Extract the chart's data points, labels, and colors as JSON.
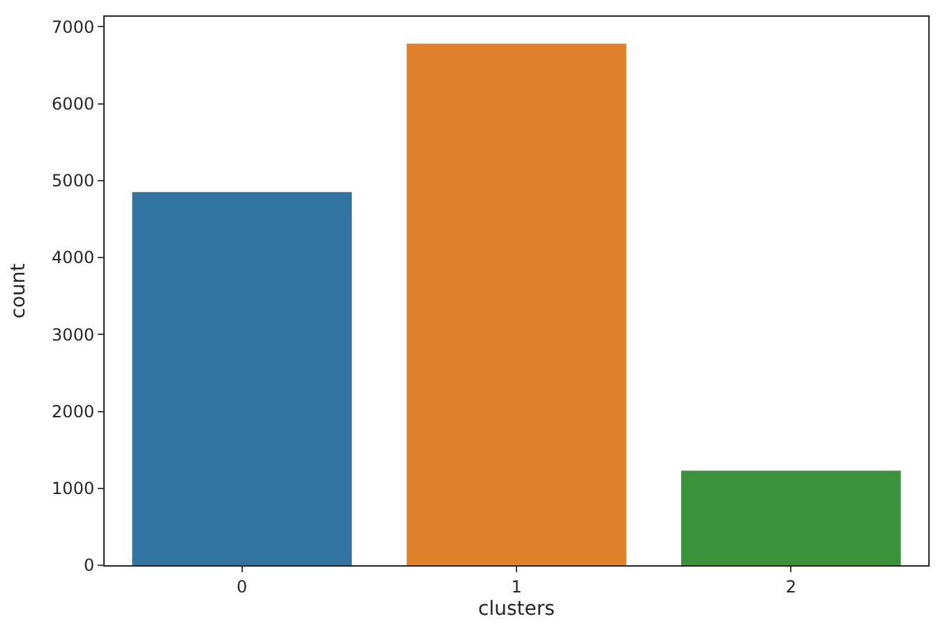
{
  "chart_data": {
    "type": "bar",
    "xlabel": "clusters",
    "ylabel": "count",
    "categories": [
      "0",
      "1",
      "2"
    ],
    "values": [
      4850,
      6780,
      1230
    ],
    "colors": [
      "#3274a1",
      "#e1812c",
      "#3a923a"
    ],
    "ylim": [
      0,
      7130
    ],
    "yticks": [
      0,
      1000,
      2000,
      3000,
      4000,
      5000,
      6000,
      7000
    ]
  }
}
